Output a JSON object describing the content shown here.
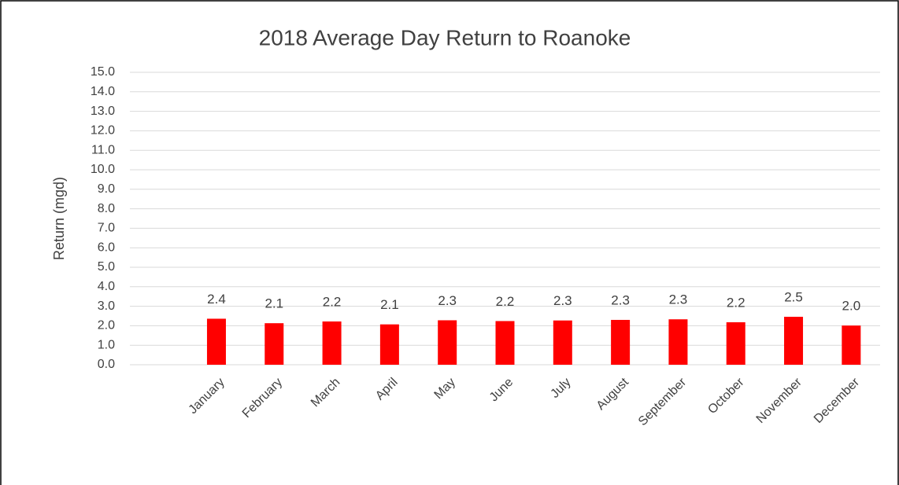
{
  "chart_data": {
    "type": "bar",
    "title": "2018 Average Day Return to Roanoke",
    "y_label": "Return (mgd)",
    "categories": [
      null,
      "January",
      "February",
      "March",
      "April",
      "May",
      "June",
      "July",
      "August",
      "September",
      "October",
      "November",
      "December"
    ],
    "values": [
      null,
      2.36,
      2.13,
      2.22,
      2.07,
      2.28,
      2.24,
      2.27,
      2.3,
      2.33,
      2.18,
      2.46,
      2.01
    ],
    "value_labels": [
      null,
      "2.4",
      "2.1",
      "2.2",
      "2.1",
      "2.3",
      "2.2",
      "2.3",
      "2.3",
      "2.3",
      "2.2",
      "2.5",
      "2.0"
    ],
    "color": "#ff0000",
    "ylim": [
      0,
      15
    ],
    "yticks": [
      {
        "value": 0,
        "label": "0.0"
      },
      {
        "value": 1,
        "label": "1.0"
      },
      {
        "value": 2,
        "label": "2.0"
      },
      {
        "value": 3,
        "label": "3.0"
      },
      {
        "value": 4,
        "label": "4.0"
      },
      {
        "value": 5,
        "label": "5.0"
      },
      {
        "value": 6,
        "label": "6.0"
      },
      {
        "value": 7,
        "label": "7.0"
      },
      {
        "value": 8,
        "label": "8.0"
      },
      {
        "value": 9,
        "label": "9.0"
      },
      {
        "value": 10,
        "label": "10.0"
      },
      {
        "value": 11,
        "label": "11.0"
      },
      {
        "value": 12,
        "label": "12.0"
      },
      {
        "value": 13,
        "label": "13.0"
      },
      {
        "value": 14,
        "label": "14.0"
      },
      {
        "value": 15,
        "label": "15.0"
      }
    ],
    "grid": true
  }
}
